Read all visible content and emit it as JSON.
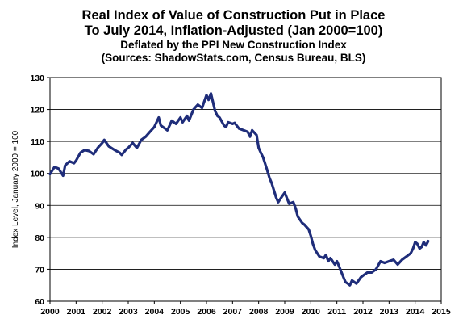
{
  "chart_data": {
    "type": "line",
    "title": "Real Index of Value of Construction Put in Place",
    "title_line2": "To July 2014, Inflation-Adjusted (Jan 2000=100)",
    "subtitle": "Deflated by the PPI New Construction Index",
    "source": "(Sources: ShadowStats.com, Census Bureau, BLS)",
    "xlabel": "",
    "ylabel": "Index Level, January 2000 = 100",
    "xlim": [
      2000,
      2015
    ],
    "ylim": [
      60,
      130
    ],
    "y_ticks": [
      60,
      70,
      80,
      90,
      100,
      110,
      120,
      130
    ],
    "x_ticks": [
      "2000",
      "2001",
      "2002",
      "2003",
      "2004",
      "2005",
      "2006",
      "2007",
      "2008",
      "2009",
      "2010",
      "2011",
      "2012",
      "2013",
      "2014",
      "2015"
    ],
    "grid": "horizontal",
    "line_color": "#1f2d7a",
    "series": [
      {
        "x": [
          2000.0,
          2000.17,
          2000.33,
          2000.5,
          2000.58,
          2000.67,
          2000.75,
          2000.92,
          2001.0,
          2001.17,
          2001.33,
          2001.5,
          2001.67,
          2001.83,
          2002.0,
          2002.08,
          2002.25,
          2002.5,
          2002.67,
          2002.75,
          2002.92,
          2003.0,
          2003.17,
          2003.33,
          2003.5,
          2003.67,
          2003.83,
          2004.0,
          2004.17,
          2004.25,
          2004.42,
          2004.5,
          2004.67,
          2004.83,
          2005.0,
          2005.08,
          2005.25,
          2005.33,
          2005.5,
          2005.67,
          2005.83,
          2006.0,
          2006.08,
          2006.17,
          2006.33,
          2006.42,
          2006.5,
          2006.67,
          2006.75,
          2006.83,
          2007.0,
          2007.08,
          2007.25,
          2007.42,
          2007.58,
          2007.67,
          2007.75,
          2007.92,
          2008.0,
          2008.08,
          2008.17,
          2008.33,
          2008.42,
          2008.5,
          2008.67,
          2008.75,
          2008.83,
          2009.0,
          2009.17,
          2009.33,
          2009.42,
          2009.5,
          2009.67,
          2009.75,
          2009.92,
          2010.0,
          2010.08,
          2010.17,
          2010.33,
          2010.5,
          2010.58,
          2010.67,
          2010.75,
          2010.92,
          2011.0,
          2011.08,
          2011.25,
          2011.33,
          2011.42,
          2011.5,
          2011.58,
          2011.75,
          2011.92,
          2012.0,
          2012.17,
          2012.33,
          2012.5,
          2012.67,
          2012.83,
          2013.0,
          2013.17,
          2013.33,
          2013.5,
          2013.67,
          2013.83,
          2013.92,
          2014.0,
          2014.08,
          2014.17,
          2014.25,
          2014.33,
          2014.42,
          2014.5
        ],
        "values": [
          99.8,
          102.0,
          101.5,
          99.3,
          102.5,
          103.2,
          103.8,
          103.2,
          104.0,
          106.5,
          107.3,
          107.0,
          106.0,
          108.0,
          109.5,
          110.5,
          108.5,
          107.2,
          106.5,
          105.8,
          107.5,
          108.0,
          109.5,
          108.0,
          110.5,
          111.5,
          113.0,
          114.5,
          117.5,
          115.0,
          114.0,
          113.5,
          116.5,
          115.5,
          117.5,
          116.0,
          118.0,
          116.5,
          120.0,
          121.5,
          120.5,
          124.5,
          123.0,
          125.0,
          119.5,
          118.0,
          117.5,
          115.0,
          114.5,
          116.0,
          115.5,
          115.8,
          114.0,
          113.5,
          113.0,
          111.5,
          113.5,
          112.0,
          108.0,
          106.5,
          105.0,
          101.0,
          98.5,
          97.0,
          92.5,
          91.0,
          92.0,
          94.0,
          90.5,
          91.0,
          89.0,
          86.5,
          84.5,
          84.0,
          82.5,
          80.5,
          78.0,
          76.0,
          74.0,
          73.5,
          74.5,
          72.5,
          73.5,
          71.5,
          72.5,
          71.0,
          67.5,
          66.0,
          65.5,
          65.0,
          66.5,
          65.5,
          67.5,
          68.0,
          69.0,
          69.0,
          70.0,
          72.5,
          72.0,
          72.5,
          73.0,
          71.5,
          73.0,
          74.0,
          75.0,
          76.5,
          78.5,
          78.0,
          76.5,
          77.0,
          78.5,
          77.5,
          78.8
        ]
      }
    ]
  }
}
